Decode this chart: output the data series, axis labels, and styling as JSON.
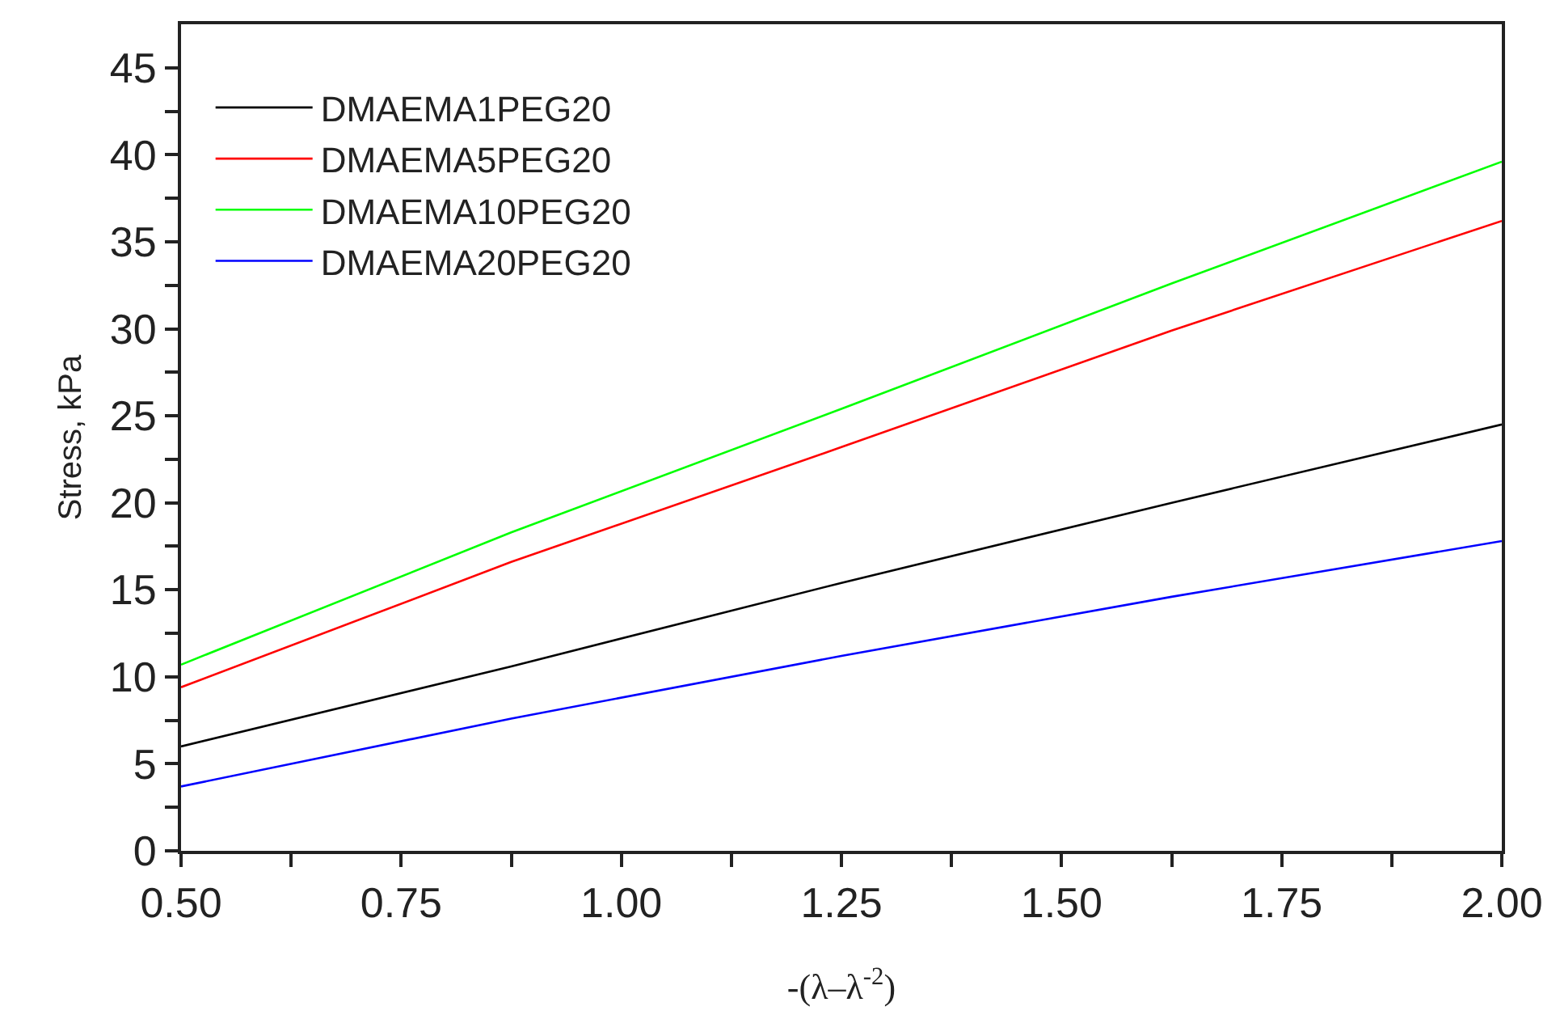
{
  "chart_data": {
    "type": "line",
    "xlabel": "-(λ–λ$^{-2}$)",
    "ylabel": "Stress, kPa",
    "x": [
      0.5,
      0.875,
      1.25,
      1.625,
      2.0
    ],
    "series": [
      {
        "name": "DMAEMA1PEG20",
        "color": "#000000",
        "values": [
          6.0,
          10.6,
          15.4,
          20.0,
          24.5
        ]
      },
      {
        "name": "DMAEMA5PEG20",
        "color": "#ff0000",
        "values": [
          9.4,
          16.6,
          23.2,
          29.9,
          36.2
        ]
      },
      {
        "name": "DMAEMA10PEG20",
        "color": "#00ff00",
        "values": [
          10.7,
          18.3,
          25.4,
          32.6,
          39.6
        ]
      },
      {
        "name": "DMAEMA20PEG20",
        "color": "#0000ff",
        "values": [
          3.7,
          7.6,
          11.2,
          14.6,
          17.8
        ]
      }
    ],
    "xlim": [
      0.5,
      2.0
    ],
    "ylim": [
      0,
      47.5
    ],
    "xticks": [
      {
        "value": 0.5,
        "label": "0.50"
      },
      {
        "value": 0.625,
        "label": null
      },
      {
        "value": 0.75,
        "label": "0.75"
      },
      {
        "value": 0.875,
        "label": null
      },
      {
        "value": 1.0,
        "label": "1.00"
      },
      {
        "value": 1.125,
        "label": null
      },
      {
        "value": 1.25,
        "label": "1.25"
      },
      {
        "value": 1.375,
        "label": null
      },
      {
        "value": 1.5,
        "label": "1.50"
      },
      {
        "value": 1.625,
        "label": null
      },
      {
        "value": 1.75,
        "label": "1.75"
      },
      {
        "value": 1.875,
        "label": null
      },
      {
        "value": 2.0,
        "label": "2.00"
      }
    ],
    "yticks": [
      0,
      {
        "value": 2.5,
        "label": null
      },
      5,
      {
        "value": 7.5,
        "label": null
      },
      10,
      {
        "value": 12.5,
        "label": null
      },
      15,
      {
        "value": 17.5,
        "label": null
      },
      20,
      {
        "value": 22.5,
        "label": null
      },
      25,
      {
        "value": 27.5,
        "label": null
      },
      30,
      {
        "value": 32.5,
        "label": null
      },
      35,
      {
        "value": 37.5,
        "label": null
      },
      40,
      {
        "value": 42.5,
        "label": null
      },
      45
    ],
    "grid": false,
    "legend": "top left",
    "marker": "none",
    "line_style": "solid"
  }
}
